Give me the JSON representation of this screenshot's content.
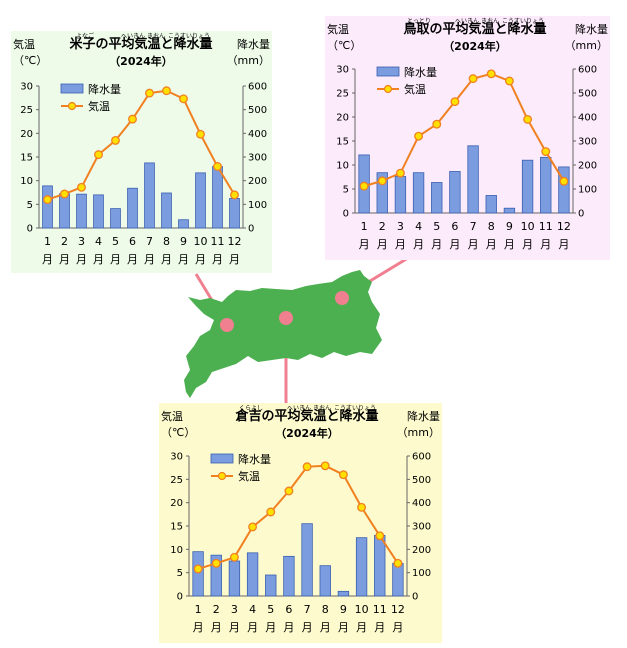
{
  "common": {
    "axis_temp_label": "気温",
    "axis_temp_unit": "（℃）",
    "axis_precip_label": "降水量",
    "axis_precip_unit": "（mm）",
    "legend_precip": "降水量",
    "legend_temp": "気温",
    "year_label": "（2024年）",
    "month_suffix": "月",
    "months": [
      "1",
      "2",
      "3",
      "4",
      "5",
      "6",
      "7",
      "8",
      "9",
      "10",
      "11",
      "12"
    ],
    "temp_ticks": [
      "0",
      "5",
      "10",
      "15",
      "20",
      "25",
      "30"
    ],
    "precip_ticks": [
      "0",
      "100",
      "200",
      "300",
      "400",
      "500",
      "600"
    ],
    "bar_color": "#7b9de0",
    "line_color": "#f08020",
    "marker_color": "#ffe000",
    "map_color": "#4caf50",
    "connector_color": "#f08090",
    "furigana": {
      "heikin": "へいきん",
      "kion": "きおん",
      "kousuiryou": "こうすいりょう"
    }
  },
  "chart_data": [
    {
      "type": "bar+line",
      "title": "米子の平均気温と降水量",
      "city": "米子",
      "city_reading": "よなご",
      "subtitle": "（2024年）",
      "bg": "#eefbe9",
      "categories": [
        "1",
        "2",
        "3",
        "4",
        "5",
        "6",
        "7",
        "8",
        "9",
        "10",
        "11",
        "12"
      ],
      "series": [
        {
          "name": "降水量",
          "type": "bar",
          "axis": "right",
          "values": [
            178,
            145,
            143,
            140,
            82,
            168,
            275,
            148,
            35,
            233,
            260,
            125
          ]
        },
        {
          "name": "気温",
          "type": "line",
          "axis": "left",
          "values": [
            6.0,
            7.2,
            8.6,
            15.5,
            18.5,
            23.0,
            28.5,
            29.0,
            27.3,
            19.8,
            13.0,
            7.0
          ]
        }
      ],
      "ylim_left": [
        0,
        30
      ],
      "ylim_right": [
        0,
        600
      ]
    },
    {
      "type": "bar+line",
      "title": "鳥取の平均気温と降水量",
      "city": "鳥取",
      "city_reading": "とっとり",
      "subtitle": "（2024年）",
      "bg": "#fcebfb",
      "categories": [
        "1",
        "2",
        "3",
        "4",
        "5",
        "6",
        "7",
        "8",
        "9",
        "10",
        "11",
        "12"
      ],
      "series": [
        {
          "name": "降水量",
          "type": "bar",
          "axis": "right",
          "values": [
            242,
            168,
            152,
            168,
            127,
            173,
            280,
            73,
            20,
            220,
            232,
            192
          ]
        },
        {
          "name": "気温",
          "type": "line",
          "axis": "left",
          "values": [
            5.6,
            6.7,
            8.3,
            16.0,
            18.5,
            23.2,
            28.0,
            29.0,
            27.5,
            19.5,
            12.8,
            6.6
          ]
        }
      ],
      "ylim_left": [
        0,
        30
      ],
      "ylim_right": [
        0,
        600
      ]
    },
    {
      "type": "bar+line",
      "title": "倉吉の平均気温と降水量",
      "city": "倉吉",
      "city_reading": "くらよし",
      "subtitle": "（2024年）",
      "bg": "#fdfbcd",
      "categories": [
        "1",
        "2",
        "3",
        "4",
        "5",
        "6",
        "7",
        "8",
        "9",
        "10",
        "11",
        "12"
      ],
      "series": [
        {
          "name": "降水量",
          "type": "bar",
          "axis": "right",
          "values": [
            190,
            175,
            150,
            185,
            90,
            170,
            310,
            130,
            20,
            250,
            260,
            140
          ]
        },
        {
          "name": "気温",
          "type": "line",
          "axis": "left",
          "values": [
            5.8,
            7.0,
            8.3,
            14.8,
            18.0,
            22.5,
            27.7,
            27.9,
            26.0,
            19.0,
            12.9,
            7.0
          ]
        }
      ],
      "ylim_left": [
        0,
        30
      ],
      "ylim_right": [
        0,
        600
      ]
    }
  ]
}
